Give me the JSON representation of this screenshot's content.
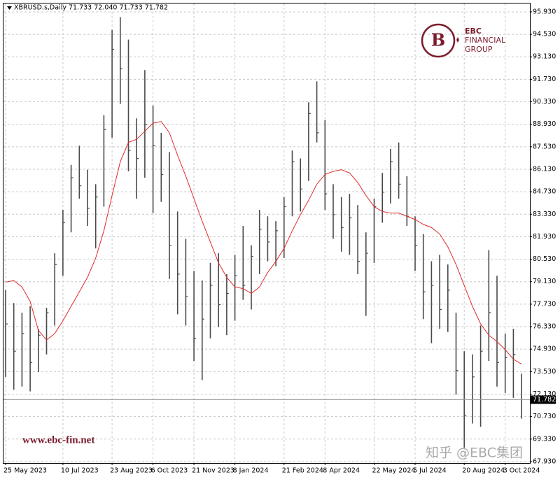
{
  "chart_data": {
    "type": "ohlc",
    "title": "XBRUSD.s,Daily  71.733 72.040 71.733 71.782",
    "categories": [
      "25 May 2023",
      null,
      null,
      null,
      null,
      null,
      null,
      "10 Jul 2023",
      null,
      null,
      null,
      null,
      null,
      "23 Aug 2023",
      null,
      null,
      null,
      null,
      "6 Oct 2023",
      null,
      null,
      null,
      null,
      "21 Nov 2023",
      null,
      null,
      null,
      null,
      "8 Jan 2024",
      null,
      null,
      null,
      null,
      null,
      "21 Feb 2024",
      null,
      null,
      null,
      null,
      "8 Apr 2024",
      null,
      null,
      null,
      null,
      null,
      "22 May 2024",
      null,
      null,
      null,
      null,
      "5 Jul 2024",
      null,
      null,
      null,
      null,
      null,
      "20 Aug 2024",
      null,
      null,
      null,
      null,
      "3 Oct 2024",
      null,
      null
    ],
    "high": [
      78.6,
      77.8,
      77.2,
      77.6,
      76.2,
      77.5,
      80.9,
      83.6,
      86.4,
      87.6,
      86.1,
      85.2,
      89.5,
      94.8,
      95.6,
      94.2,
      89.3,
      92.3,
      90.1,
      88.4,
      87.2,
      83.5,
      81.8,
      79.8,
      79.2,
      80.3,
      80.9,
      79.6,
      80.8,
      82.6,
      81.4,
      83.6,
      83.2,
      82.9,
      84.4,
      87.3,
      86.8,
      90.3,
      91.6,
      89.2,
      85.2,
      84.4,
      84.6,
      83.9,
      82.2,
      84.3,
      85.9,
      87.4,
      87.8,
      85.7,
      83.2,
      82.1,
      80.4,
      80.8,
      80.2,
      77.2,
      74.8,
      74.6,
      76.4,
      81.1,
      79.5,
      75.9,
      76.2,
      73.4
    ],
    "low": [
      73.2,
      72.4,
      72.6,
      72.3,
      73.5,
      74.6,
      76.4,
      79.5,
      82.2,
      84.3,
      82.6,
      81.2,
      83.8,
      88.1,
      90.2,
      86.0,
      84.3,
      85.6,
      83.4,
      84.1,
      79.3,
      77.1,
      76.4,
      74.2,
      73.0,
      75.6,
      76.3,
      75.8,
      76.7,
      78.0,
      77.4,
      79.6,
      80.4,
      80.1,
      80.6,
      83.2,
      83.5,
      85.4,
      87.8,
      83.6,
      81.8,
      81.0,
      80.8,
      79.6,
      77.0,
      80.3,
      82.8,
      84.0,
      84.3,
      82.6,
      79.8,
      76.8,
      75.3,
      76.2,
      76.0,
      72.1,
      68.8,
      70.3,
      70.1,
      74.2,
      72.6,
      72.2,
      71.9,
      70.6
    ],
    "close": [
      76.5,
      74.8,
      75.9,
      74.1,
      75.8,
      77.2,
      80.2,
      82.8,
      85.6,
      85.1,
      83.7,
      84.4,
      88.6,
      93.6,
      92.4,
      87.3,
      86.8,
      88.9,
      87.6,
      85.8,
      81.4,
      79.6,
      78.2,
      75.6,
      76.8,
      78.9,
      77.7,
      78.4,
      79.5,
      78.9,
      80.7,
      82.4,
      81.6,
      82.3,
      83.8,
      86.6,
      84.9,
      89.6,
      88.4,
      84.6,
      83.3,
      82.5,
      83.1,
      80.4,
      80.9,
      83.8,
      84.7,
      86.6,
      85.2,
      83.2,
      81.4,
      78.5,
      78.9,
      77.4,
      78.6,
      73.6,
      70.8,
      73.2,
      74.8,
      77.2,
      74.1,
      74.4,
      74.6,
      71.782
    ],
    "color": "#4a4a4a",
    "ma": {
      "color": "#e02a2a",
      "values": [
        79.1,
        79.2,
        78.8,
        77.9,
        76.1,
        75.5,
        75.9,
        76.7,
        77.6,
        78.5,
        79.4,
        80.6,
        82.3,
        84.5,
        86.6,
        87.8,
        88.0,
        88.5,
        89.0,
        89.1,
        88.4,
        87.0,
        85.7,
        84.3,
        82.9,
        81.6,
        80.3,
        79.4,
        78.8,
        78.7,
        78.4,
        78.8,
        79.7,
        80.4,
        81.2,
        82.3,
        83.3,
        84.2,
        85.2,
        85.8,
        86.0,
        86.1,
        85.9,
        85.3,
        84.5,
        83.8,
        83.5,
        83.4,
        83.4,
        83.2,
        83.0,
        82.7,
        82.5,
        82.1,
        81.3,
        80.2,
        78.9,
        77.6,
        76.5,
        75.8,
        75.4,
        74.9,
        74.3,
        74.0
      ]
    },
    "last_price": {
      "value": 71.782,
      "label": "71.782"
    },
    "ylim": [
      67.84,
      96.45
    ],
    "yticks": [
      {
        "value": 95.93,
        "label": "95.930"
      },
      {
        "value": 94.53,
        "label": "94.530"
      },
      {
        "value": 93.13,
        "label": "93.130"
      },
      {
        "value": 91.73,
        "label": "91.730"
      },
      {
        "value": 90.33,
        "label": "90.330"
      },
      {
        "value": 88.93,
        "label": "88.930"
      },
      {
        "value": 87.53,
        "label": "87.530"
      },
      {
        "value": 86.13,
        "label": "86.130"
      },
      {
        "value": 84.73,
        "label": "84.730"
      },
      {
        "value": 83.33,
        "label": "83.330"
      },
      {
        "value": 81.93,
        "label": "81.930"
      },
      {
        "value": 80.53,
        "label": "80.530"
      },
      {
        "value": 79.13,
        "label": "79.130"
      },
      {
        "value": 77.73,
        "label": "77.730"
      },
      {
        "value": 76.33,
        "label": "76.330"
      },
      {
        "value": 74.93,
        "label": "74.930"
      },
      {
        "value": 73.53,
        "label": "73.530"
      },
      {
        "value": 72.13,
        "label": "72.130"
      },
      {
        "value": 70.73,
        "label": "70.730"
      },
      {
        "value": 69.33,
        "label": "69.330"
      },
      {
        "value": 67.93,
        "label": "67.930"
      }
    ],
    "grid": true
  },
  "watermark": {
    "site": "www.ebc-fin.net",
    "brand_top": "EBC",
    "brand_line1": "FINANCIAL",
    "brand_line2": "GROUP",
    "social": "知乎 @EBC集团"
  }
}
